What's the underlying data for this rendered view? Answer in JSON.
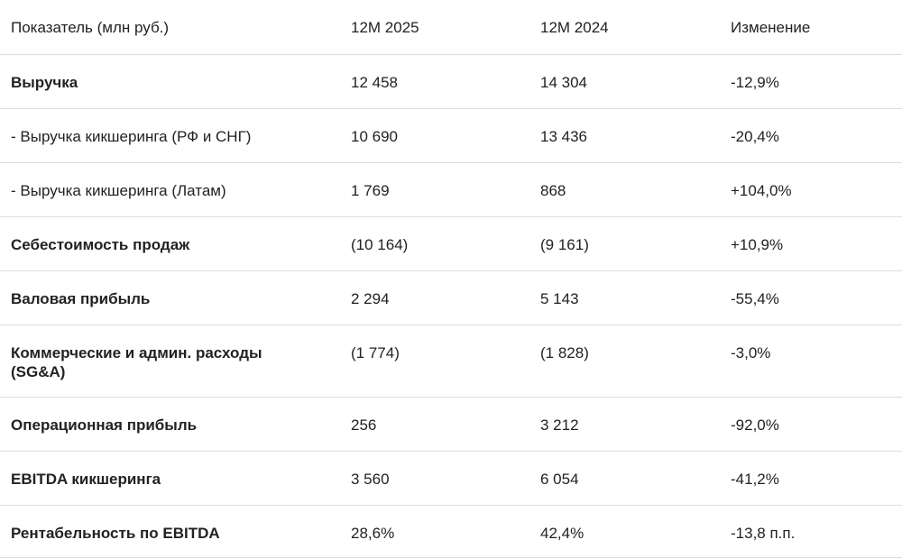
{
  "table": {
    "headers": [
      "Показатель (млн руб.)",
      "12М 2025",
      "12М 2024",
      "Изменение"
    ],
    "rows": [
      {
        "label": "Выручка",
        "v2025": "12 458",
        "v2024": "14 304",
        "change": "-12,9%",
        "bold": true
      },
      {
        "label": "- Выручка кикшеринга (РФ и СНГ)",
        "v2025": "10 690",
        "v2024": "13 436",
        "change": "-20,4%",
        "bold": false
      },
      {
        "label": "- Выручка кикшеринга (Латам)",
        "v2025": "1 769",
        "v2024": "868",
        "change": "+104,0%",
        "bold": false
      },
      {
        "label": "Себестоимость продаж",
        "v2025": "(10 164)",
        "v2024": "(9 161)",
        "change": "+10,9%",
        "bold": true
      },
      {
        "label": "Валовая прибыль",
        "v2025": "2 294",
        "v2024": "5 143",
        "change": "-55,4%",
        "bold": true
      },
      {
        "label": "Коммерческие и админ. расходы (SG&A)",
        "v2025": "(1 774)",
        "v2024": "(1 828)",
        "change": "-3,0%",
        "bold": true
      },
      {
        "label": "Операционная прибыль",
        "v2025": "256",
        "v2024": "3 212",
        "change": "-92,0%",
        "bold": true
      },
      {
        "label": "EBITDA кикшеринга",
        "v2025": "3 560",
        "v2024": "6 054",
        "change": "-41,2%",
        "bold": true
      },
      {
        "label": "Рентабельность по EBITDA",
        "v2025": "28,6%",
        "v2024": "42,4%",
        "change": "-13,8 п.п.",
        "bold": true
      }
    ]
  }
}
